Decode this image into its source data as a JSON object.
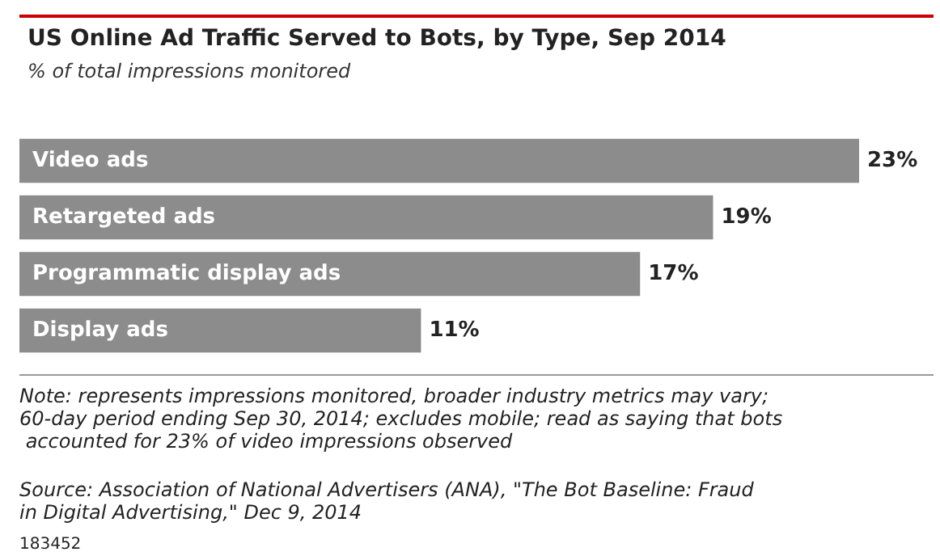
{
  "chart_data": {
    "type": "bar",
    "orientation": "horizontal",
    "title": "US Online Ad Traffic Served to Bots, by Type, Sep 2014",
    "subtitle": "% of total impressions monitored",
    "categories": [
      "Video ads",
      "Retargeted ads",
      "Programmatic display ads",
      "Display ads"
    ],
    "values": [
      23,
      19,
      17,
      11
    ],
    "color": "#8c8c8c",
    "value_labels": [
      "23%",
      "19%",
      "17%",
      "11%"
    ],
    "annotations": [
      "Note: represents impressions monitored, broader industry metrics may vary; 60-day period ending Sep 30, 2014; excludes mobile; read as saying that bots accounted for 23% of video impressions observed",
      "Source: Association of National Advertisers (ANA), \"The Bot Baseline: Fraud in Digital Advertising,\" Dec 9, 2014",
      "183452"
    ]
  }
}
